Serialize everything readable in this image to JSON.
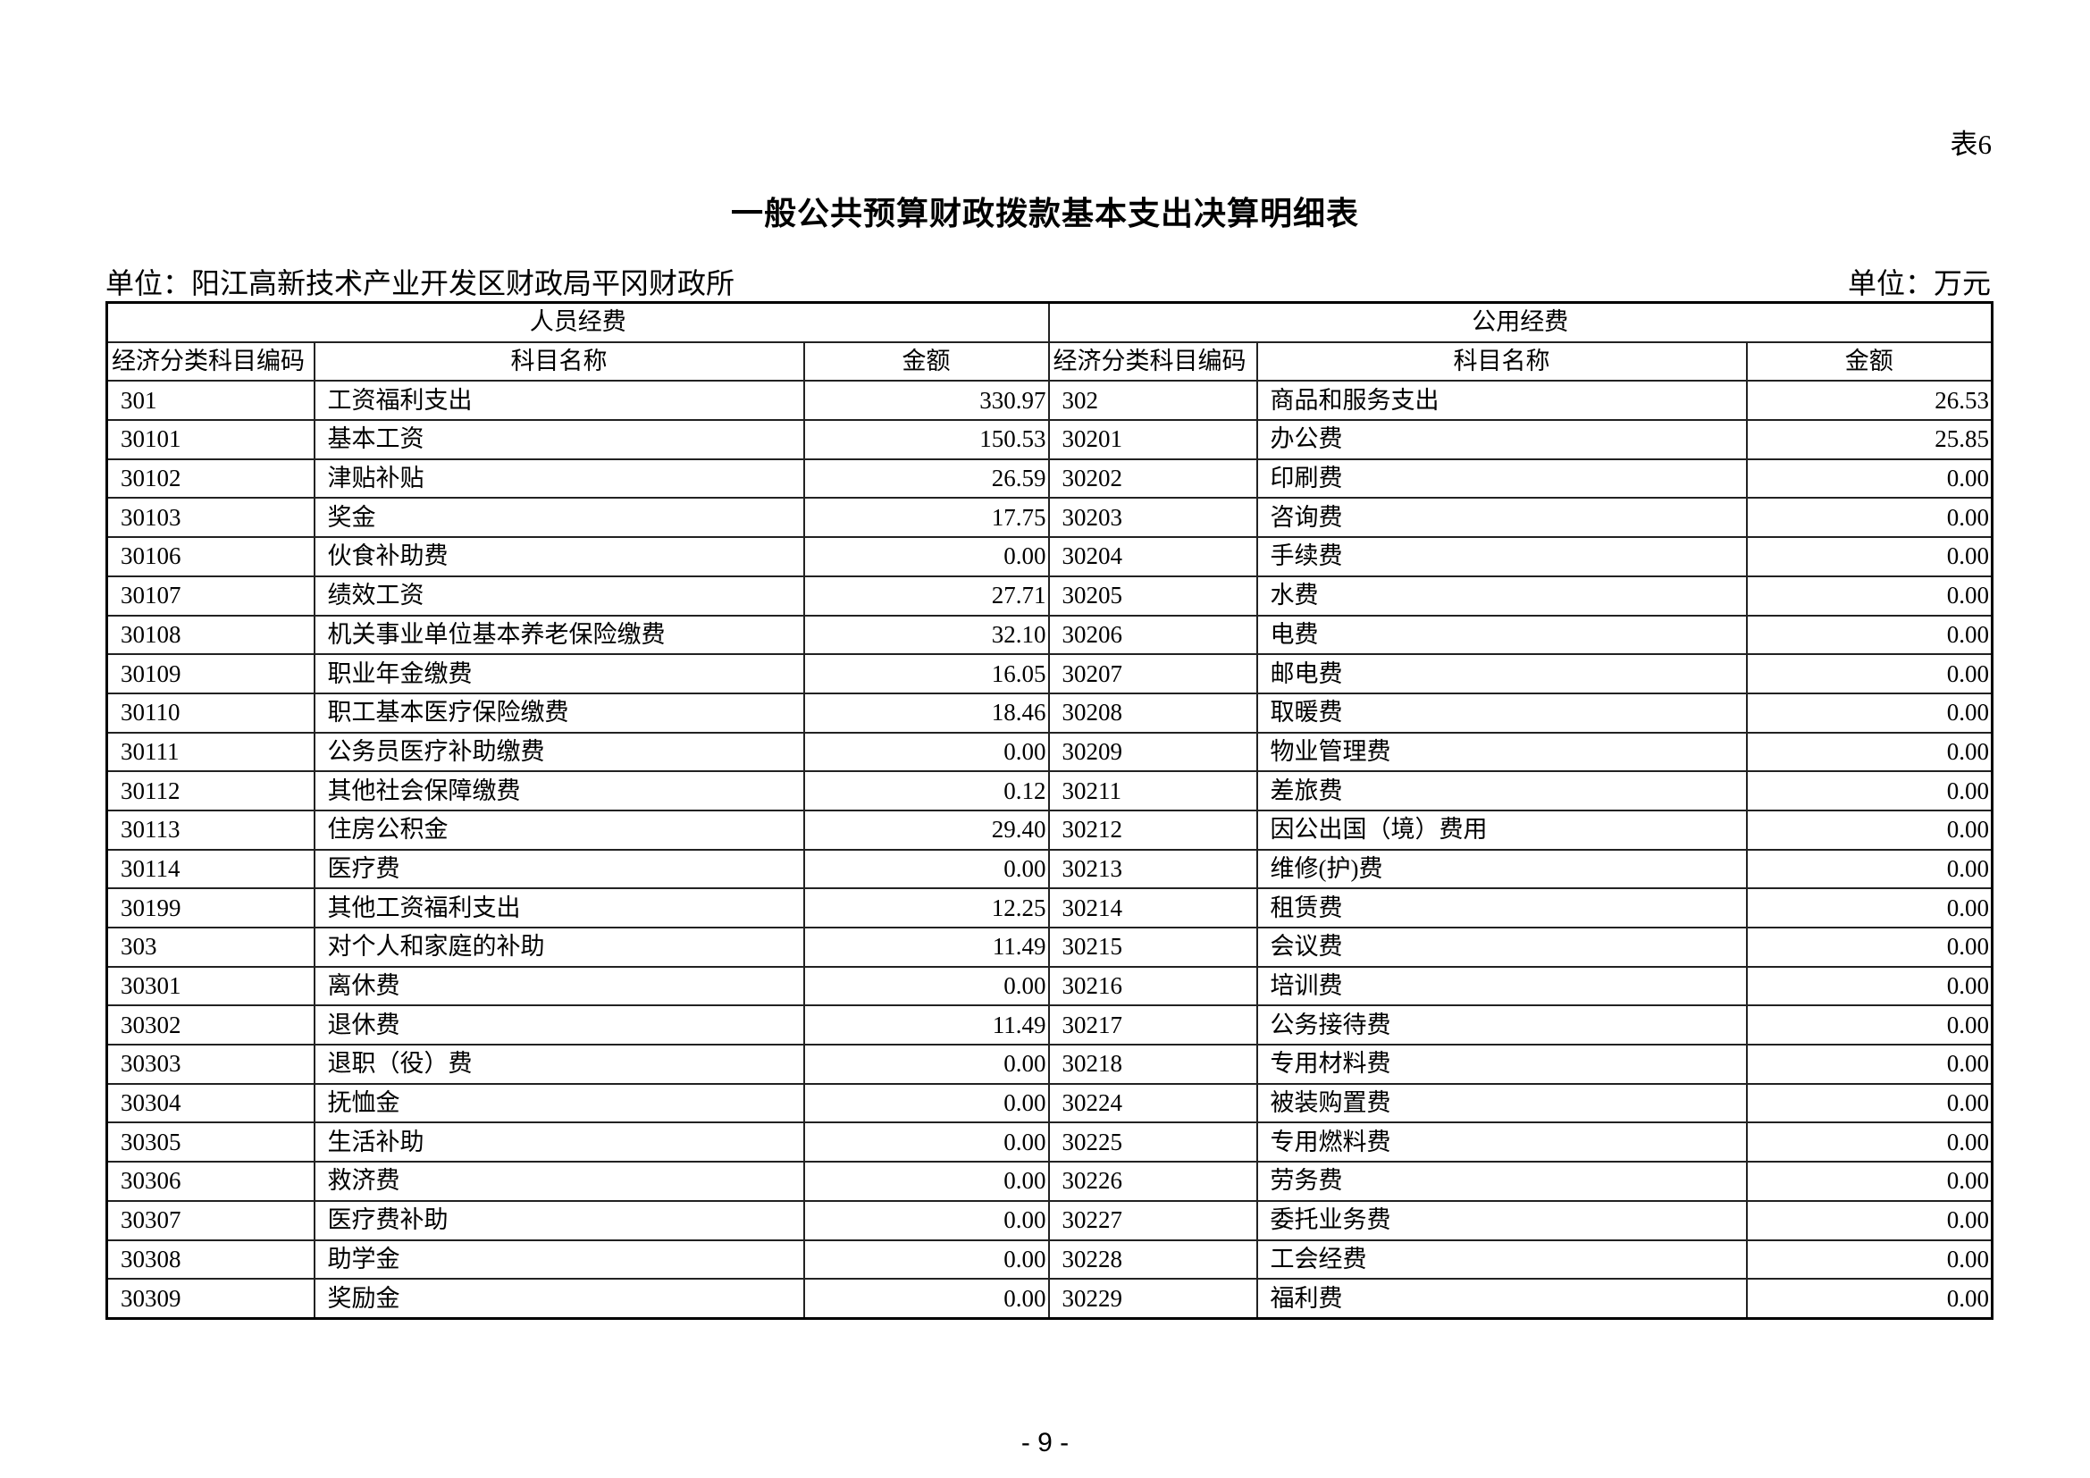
{
  "table_no": "表6",
  "title": "一般公共预算财政拨款基本支出决算明细表",
  "unit_org": "单位：阳江高新技术产业开发区财政局平冈财政所",
  "unit_currency": "单位：万元",
  "groups": {
    "personnel": "人员经费",
    "public": "公用经费"
  },
  "columns": {
    "code": "经济分类科目编码",
    "name": "科目名称",
    "amount": "金额"
  },
  "rows": [
    {
      "lcode": "301",
      "lname": "工资福利支出",
      "lamt": "330.97",
      "rcode": "302",
      "rname": "商品和服务支出",
      "ramt": "26.53"
    },
    {
      "lcode": "30101",
      "lname": "基本工资",
      "lamt": "150.53",
      "rcode": "30201",
      "rname": "办公费",
      "ramt": "25.85"
    },
    {
      "lcode": "30102",
      "lname": "津贴补贴",
      "lamt": "26.59",
      "rcode": "30202",
      "rname": "印刷费",
      "ramt": "0.00"
    },
    {
      "lcode": "30103",
      "lname": "奖金",
      "lamt": "17.75",
      "rcode": "30203",
      "rname": "咨询费",
      "ramt": "0.00"
    },
    {
      "lcode": "30106",
      "lname": "伙食补助费",
      "lamt": "0.00",
      "rcode": "30204",
      "rname": "手续费",
      "ramt": "0.00"
    },
    {
      "lcode": "30107",
      "lname": "绩效工资",
      "lamt": "27.71",
      "rcode": "30205",
      "rname": "水费",
      "ramt": "0.00"
    },
    {
      "lcode": "30108",
      "lname": "机关事业单位基本养老保险缴费",
      "lamt": "32.10",
      "rcode": "30206",
      "rname": "电费",
      "ramt": "0.00"
    },
    {
      "lcode": "30109",
      "lname": "职业年金缴费",
      "lamt": "16.05",
      "rcode": "30207",
      "rname": "邮电费",
      "ramt": "0.00"
    },
    {
      "lcode": "30110",
      "lname": "职工基本医疗保险缴费",
      "lamt": "18.46",
      "rcode": "30208",
      "rname": "取暖费",
      "ramt": "0.00"
    },
    {
      "lcode": "30111",
      "lname": "公务员医疗补助缴费",
      "lamt": "0.00",
      "rcode": "30209",
      "rname": "物业管理费",
      "ramt": "0.00"
    },
    {
      "lcode": "30112",
      "lname": "其他社会保障缴费",
      "lamt": "0.12",
      "rcode": "30211",
      "rname": "差旅费",
      "ramt": "0.00"
    },
    {
      "lcode": "30113",
      "lname": "住房公积金",
      "lamt": "29.40",
      "rcode": "30212",
      "rname": "因公出国（境）费用",
      "ramt": "0.00"
    },
    {
      "lcode": "30114",
      "lname": "医疗费",
      "lamt": "0.00",
      "rcode": "30213",
      "rname": "维修(护)费",
      "ramt": "0.00"
    },
    {
      "lcode": "30199",
      "lname": "其他工资福利支出",
      "lamt": "12.25",
      "rcode": "30214",
      "rname": "租赁费",
      "ramt": "0.00"
    },
    {
      "lcode": "303",
      "lname": "对个人和家庭的补助",
      "lamt": "11.49",
      "rcode": "30215",
      "rname": "会议费",
      "ramt": "0.00"
    },
    {
      "lcode": "30301",
      "lname": "离休费",
      "lamt": "0.00",
      "rcode": "30216",
      "rname": "培训费",
      "ramt": "0.00"
    },
    {
      "lcode": "30302",
      "lname": "退休费",
      "lamt": "11.49",
      "rcode": "30217",
      "rname": "公务接待费",
      "ramt": "0.00"
    },
    {
      "lcode": "30303",
      "lname": "退职（役）费",
      "lamt": "0.00",
      "rcode": "30218",
      "rname": "专用材料费",
      "ramt": "0.00"
    },
    {
      "lcode": "30304",
      "lname": "抚恤金",
      "lamt": "0.00",
      "rcode": "30224",
      "rname": "被装购置费",
      "ramt": "0.00"
    },
    {
      "lcode": "30305",
      "lname": "生活补助",
      "lamt": "0.00",
      "rcode": "30225",
      "rname": "专用燃料费",
      "ramt": "0.00"
    },
    {
      "lcode": "30306",
      "lname": "救济费",
      "lamt": "0.00",
      "rcode": "30226",
      "rname": "劳务费",
      "ramt": "0.00"
    },
    {
      "lcode": "30307",
      "lname": "医疗费补助",
      "lamt": "0.00",
      "rcode": "30227",
      "rname": "委托业务费",
      "ramt": "0.00"
    },
    {
      "lcode": "30308",
      "lname": "助学金",
      "lamt": "0.00",
      "rcode": "30228",
      "rname": "工会经费",
      "ramt": "0.00"
    },
    {
      "lcode": "30309",
      "lname": "奖励金",
      "lamt": "0.00",
      "rcode": "30229",
      "rname": "福利费",
      "ramt": "0.00"
    }
  ],
  "page_number": "- 9 -"
}
